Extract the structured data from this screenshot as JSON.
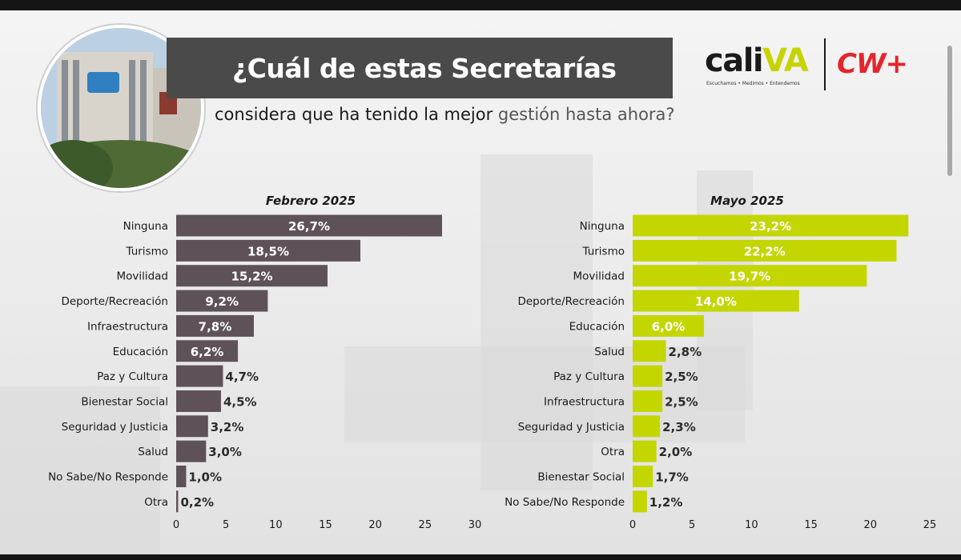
{
  "header": {
    "title": "¿Cuál de estas Secretarías",
    "subtitle_bold": "considera que ha tenido la mejor",
    "subtitle_light": "gestión hasta ahora?"
  },
  "logos": {
    "caliva_main": "cali",
    "caliva_accent": "VA",
    "caliva_tagline": "Escuchamos • Medimos • Entendemos",
    "cw": "CW+"
  },
  "colors": {
    "left_bar": "#5e5258",
    "right_bar": "#c4d600",
    "bar_text": "#ffffff",
    "outside_text": "#2b2b2b"
  },
  "chart_data": [
    {
      "type": "bar",
      "orientation": "horizontal",
      "title": "Febrero 2025",
      "categories": [
        "Ninguna",
        "Turismo",
        "Movilidad",
        "Deporte/Recreación",
        "Infraestructura",
        "Educación",
        "Paz y Cultura",
        "Bienestar Social",
        "Seguridad y Justicia",
        "Salud",
        "No Sabe/No Responde",
        "Otra"
      ],
      "values": [
        26.7,
        18.5,
        15.2,
        9.2,
        7.8,
        6.2,
        4.7,
        4.5,
        3.2,
        3.0,
        1.0,
        0.2
      ],
      "labels": [
        "26,7%",
        "18,5%",
        "15,2%",
        "9,2%",
        "7,8%",
        "6,2%",
        "4,7%",
        "4,5%",
        "3,2%",
        "3,0%",
        "1,0%",
        "0,2%"
      ],
      "xlim": [
        0,
        30
      ],
      "xticks": [
        "0",
        "5",
        "10",
        "15",
        "20",
        "25",
        "30"
      ],
      "xticks_values": [
        0,
        5,
        10,
        15,
        20,
        25,
        30
      ]
    },
    {
      "type": "bar",
      "orientation": "horizontal",
      "title": "Mayo 2025",
      "categories": [
        "Ninguna",
        "Turismo",
        "Movilidad",
        "Deporte/Recreación",
        "Educación",
        "Salud",
        "Paz y Cultura",
        "Infraestructura",
        "Seguridad y Justicia",
        "Otra",
        "Bienestar Social",
        "No Sabe/No Responde"
      ],
      "values": [
        23.2,
        22.2,
        19.7,
        14.0,
        6.0,
        2.8,
        2.5,
        2.5,
        2.3,
        2.0,
        1.7,
        1.2
      ],
      "labels": [
        "23,2%",
        "22,2%",
        "19,7%",
        "14,0%",
        "6,0%",
        "2,8%",
        "2,5%",
        "2,5%",
        "2,3%",
        "2,0%",
        "1,7%",
        "1,2%"
      ],
      "xlim": [
        0,
        25
      ],
      "xticks": [
        "0",
        "5",
        "10",
        "15",
        "20",
        "25"
      ],
      "xticks_values": [
        0,
        5,
        10,
        15,
        20,
        25
      ]
    }
  ]
}
